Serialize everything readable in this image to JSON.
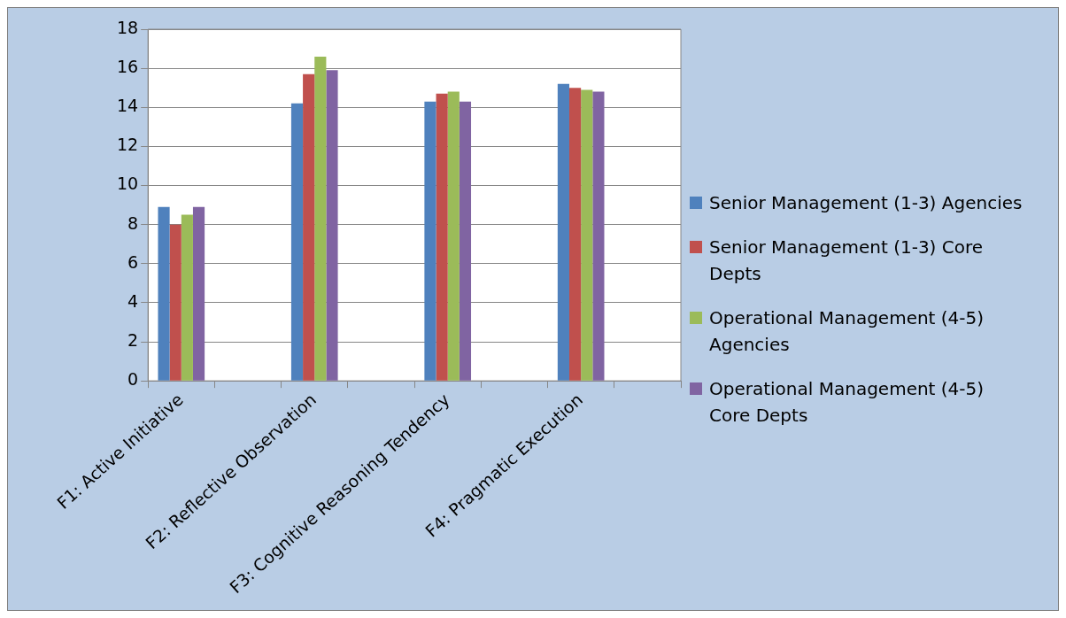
{
  "chart_data": {
    "type": "bar",
    "categories": [
      "F1: Active Initiative",
      null,
      "F2: Reflective Observation",
      null,
      "F3: Cognitive Reasoning Tendency",
      null,
      "F4: Pragmatic Execution",
      null
    ],
    "series": [
      {
        "name": "Senior Management (1-3) Agencies",
        "color": "#4f81bd",
        "values": [
          8.9,
          null,
          14.2,
          null,
          14.3,
          null,
          15.2,
          null
        ]
      },
      {
        "name": "Senior Management (1-3) Core Depts",
        "color": "#c0504d",
        "values": [
          8.0,
          null,
          15.7,
          null,
          14.7,
          null,
          15.0,
          null
        ]
      },
      {
        "name": "Operational Management (4-5) Agencies",
        "color": "#9bbb59",
        "values": [
          8.5,
          null,
          16.6,
          null,
          14.8,
          null,
          14.9,
          null
        ]
      },
      {
        "name": "Operational Management (4-5) Core Depts",
        "color": "#8064a2",
        "values": [
          8.9,
          null,
          15.9,
          null,
          14.3,
          null,
          14.8,
          null
        ]
      }
    ],
    "ylim": [
      0,
      18
    ],
    "yticks": [
      0,
      2,
      4,
      6,
      8,
      10,
      12,
      14,
      16,
      18
    ],
    "grid": "y",
    "legend": "right"
  }
}
